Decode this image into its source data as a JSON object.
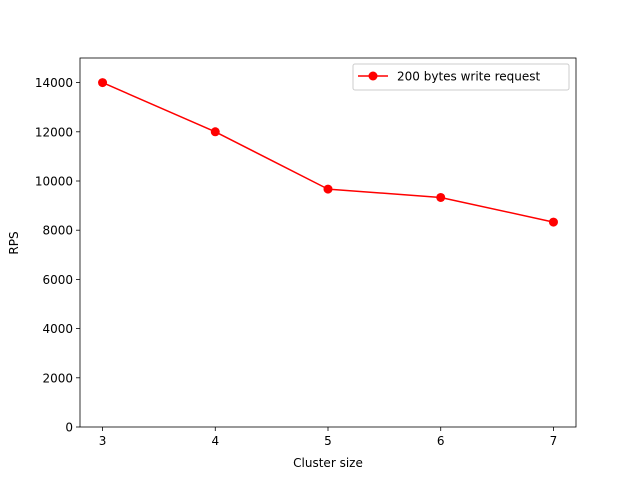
{
  "chart_data": {
    "type": "line",
    "title": "",
    "xlabel": "Cluster size",
    "ylabel": "RPS",
    "x": [
      3,
      4,
      5,
      6,
      7
    ],
    "xticks": [
      3,
      4,
      5,
      6,
      7
    ],
    "yticks": [
      0,
      2000,
      4000,
      6000,
      8000,
      10000,
      12000,
      14000
    ],
    "xlim": [
      2.8,
      7.2
    ],
    "ylim": [
      0,
      15000
    ],
    "grid": false,
    "legend_position": "upper right",
    "series": [
      {
        "name": "200 bytes write request",
        "color": "#ff0000",
        "marker": "circle",
        "values": [
          14000,
          12000,
          9670,
          9330,
          8330
        ]
      }
    ]
  }
}
